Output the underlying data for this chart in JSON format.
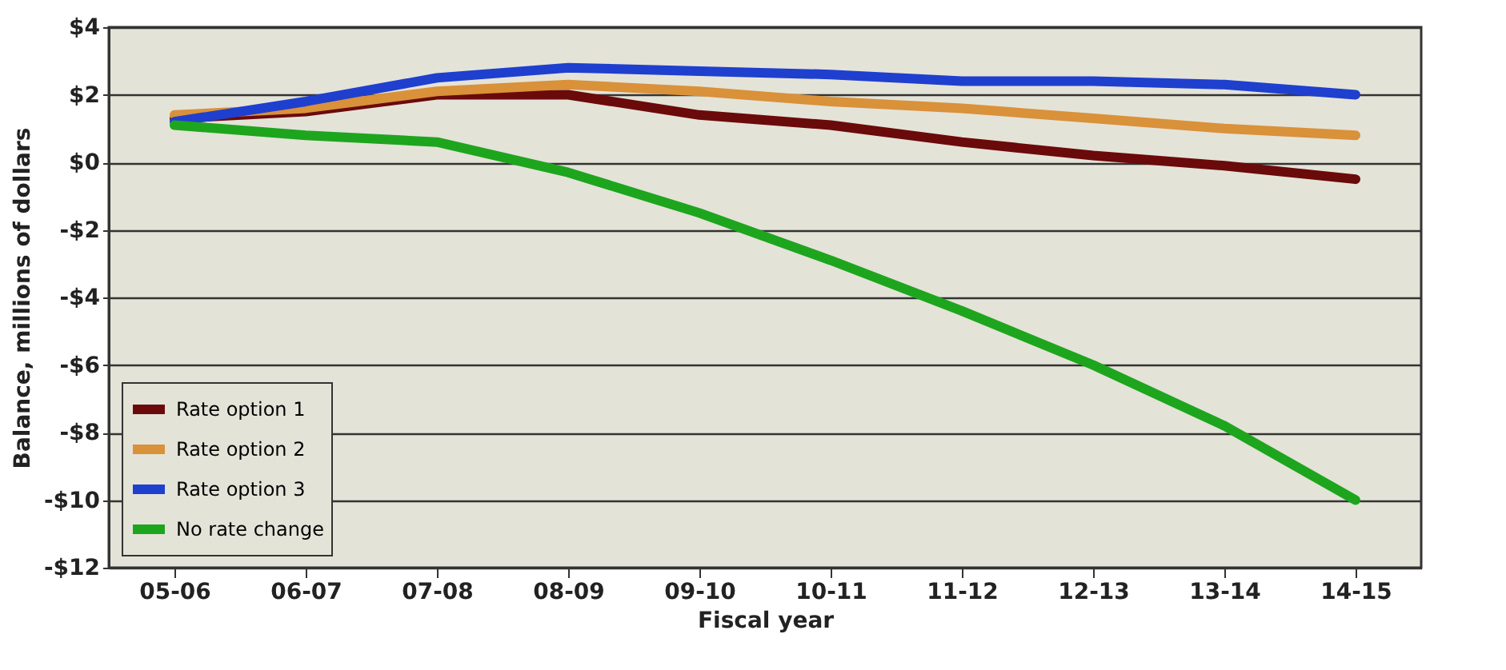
{
  "chart_data": {
    "type": "line",
    "xlabel": "Fiscal year",
    "ylabel": "Balance, millions of dollars",
    "categories": [
      "05-06",
      "06-07",
      "07-08",
      "08-09",
      "09-10",
      "10-11",
      "11-12",
      "12-13",
      "13-14",
      "14-15"
    ],
    "series": [
      {
        "name": "Rate option 1",
        "color": "#6b0a0a",
        "values": [
          1.3,
          1.5,
          2.0,
          2.0,
          1.4,
          1.1,
          0.6,
          0.2,
          -0.1,
          -0.5
        ]
      },
      {
        "name": "Rate option 2",
        "color": "#d9913a",
        "values": [
          1.4,
          1.6,
          2.1,
          2.3,
          2.1,
          1.8,
          1.6,
          1.3,
          1.0,
          0.8
        ]
      },
      {
        "name": "Rate option 3",
        "color": "#1f3fcf",
        "values": [
          1.2,
          1.8,
          2.5,
          2.8,
          2.7,
          2.6,
          2.4,
          2.4,
          2.3,
          2.0
        ]
      },
      {
        "name": "No rate change",
        "color": "#1ea51e",
        "values": [
          1.1,
          0.8,
          0.6,
          -0.3,
          -1.5,
          -2.9,
          -4.4,
          -6.0,
          -7.8,
          -10.0
        ]
      }
    ],
    "ylim": [
      -12,
      4
    ],
    "yticks": [
      {
        "value": -12,
        "label": "-$12"
      },
      {
        "value": -10,
        "label": "-$10"
      },
      {
        "value": -8,
        "label": "-$8"
      },
      {
        "value": -6,
        "label": "-$6"
      },
      {
        "value": -4,
        "label": "-$4"
      },
      {
        "value": -2,
        "label": "-$2"
      },
      {
        "value": 0,
        "label": "$0"
      },
      {
        "value": 2,
        "label": "$2"
      },
      {
        "value": 4,
        "label": "$4"
      }
    ],
    "grid": "y",
    "legend": "bottom left",
    "line_style": "solid",
    "marker": "none"
  }
}
